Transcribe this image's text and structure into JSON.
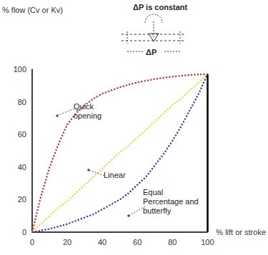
{
  "chart_data": {
    "type": "line",
    "x_label": "% lift or stroke",
    "y_label": "% flow (Cv or Kv)",
    "x": [
      0,
      5,
      10,
      15,
      20,
      25,
      30,
      35,
      40,
      45,
      50,
      55,
      60,
      65,
      70,
      75,
      80,
      85,
      90,
      95,
      100
    ],
    "series": [
      {
        "name": "Quick opening",
        "color": "#b8323c",
        "line_style": "dotted",
        "values": [
          0,
          22,
          40,
          54,
          66,
          73,
          78,
          82,
          85,
          87,
          89,
          90.5,
          92,
          93,
          94,
          94.8,
          95.5,
          96,
          96.5,
          96.8,
          97
        ]
      },
      {
        "name": "Linear",
        "color": "#e6d44a",
        "line_style": "dotted",
        "values": [
          0,
          5,
          10,
          15,
          19,
          24,
          29,
          34,
          39,
          44,
          49,
          53,
          58,
          63,
          68,
          73,
          78,
          82,
          87,
          92,
          97
        ]
      },
      {
        "name": "Equal Percentage and butterfly",
        "color": "#3a3a9e",
        "line_style": "dotted",
        "values": [
          0,
          1,
          2,
          3.5,
          5,
          7,
          9,
          11,
          14,
          17,
          20,
          24,
          29,
          34,
          41,
          48,
          56,
          65,
          75,
          85,
          97
        ]
      }
    ],
    "xlim": [
      0,
      100
    ],
    "ylim": [
      0,
      100
    ],
    "xticks": [
      0,
      20,
      40,
      60,
      80,
      100
    ],
    "yticks": [
      0,
      20,
      40,
      60,
      80,
      100
    ],
    "grid": false,
    "annotations": [
      "ΔP is constant",
      "ΔP"
    ]
  }
}
